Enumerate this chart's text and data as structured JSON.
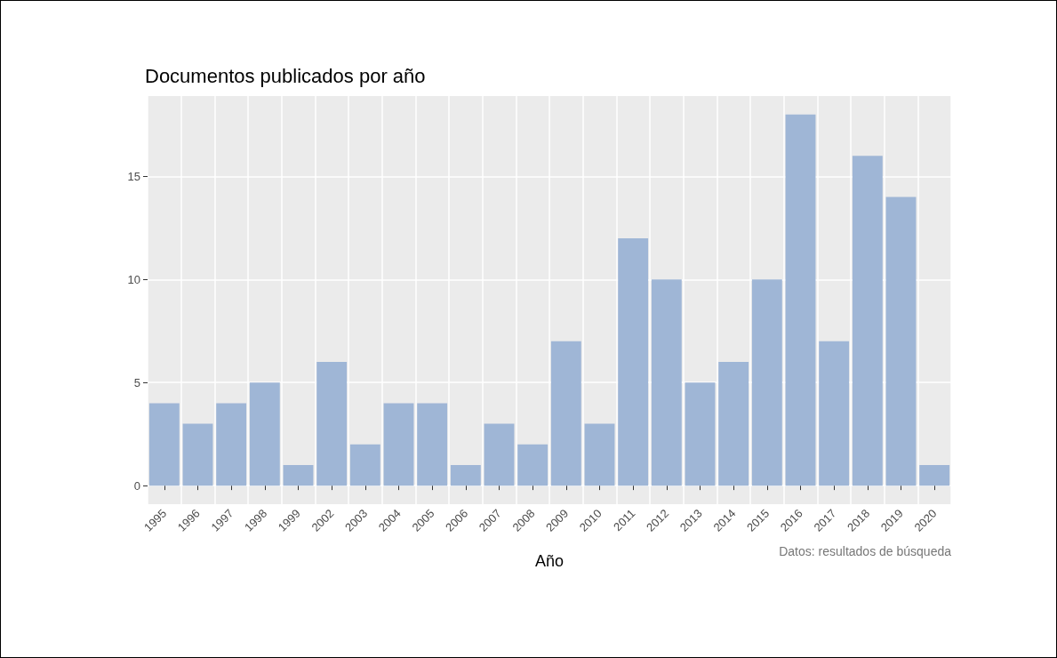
{
  "chart_data": {
    "type": "bar",
    "title": "Documentos publicados por año",
    "xlabel": "Año",
    "categories": [
      "1995",
      "1996",
      "1997",
      "1998",
      "1999",
      "2002",
      "2003",
      "2004",
      "2005",
      "2006",
      "2007",
      "2008",
      "2009",
      "2010",
      "2011",
      "2012",
      "2013",
      "2014",
      "2015",
      "2016",
      "2017",
      "2018",
      "2019",
      "2020"
    ],
    "values": [
      4,
      3,
      4,
      5,
      1,
      6,
      2,
      4,
      4,
      1,
      3,
      2,
      7,
      3,
      12,
      10,
      5,
      6,
      10,
      18,
      7,
      16,
      14,
      1
    ],
    "color": "#9fb6d6",
    "ylim": [
      -0.9,
      18.9
    ],
    "yticks": [
      0,
      5,
      10,
      15
    ],
    "grid": true,
    "annotations": [
      "Datos: resultados de búsqueda"
    ]
  }
}
